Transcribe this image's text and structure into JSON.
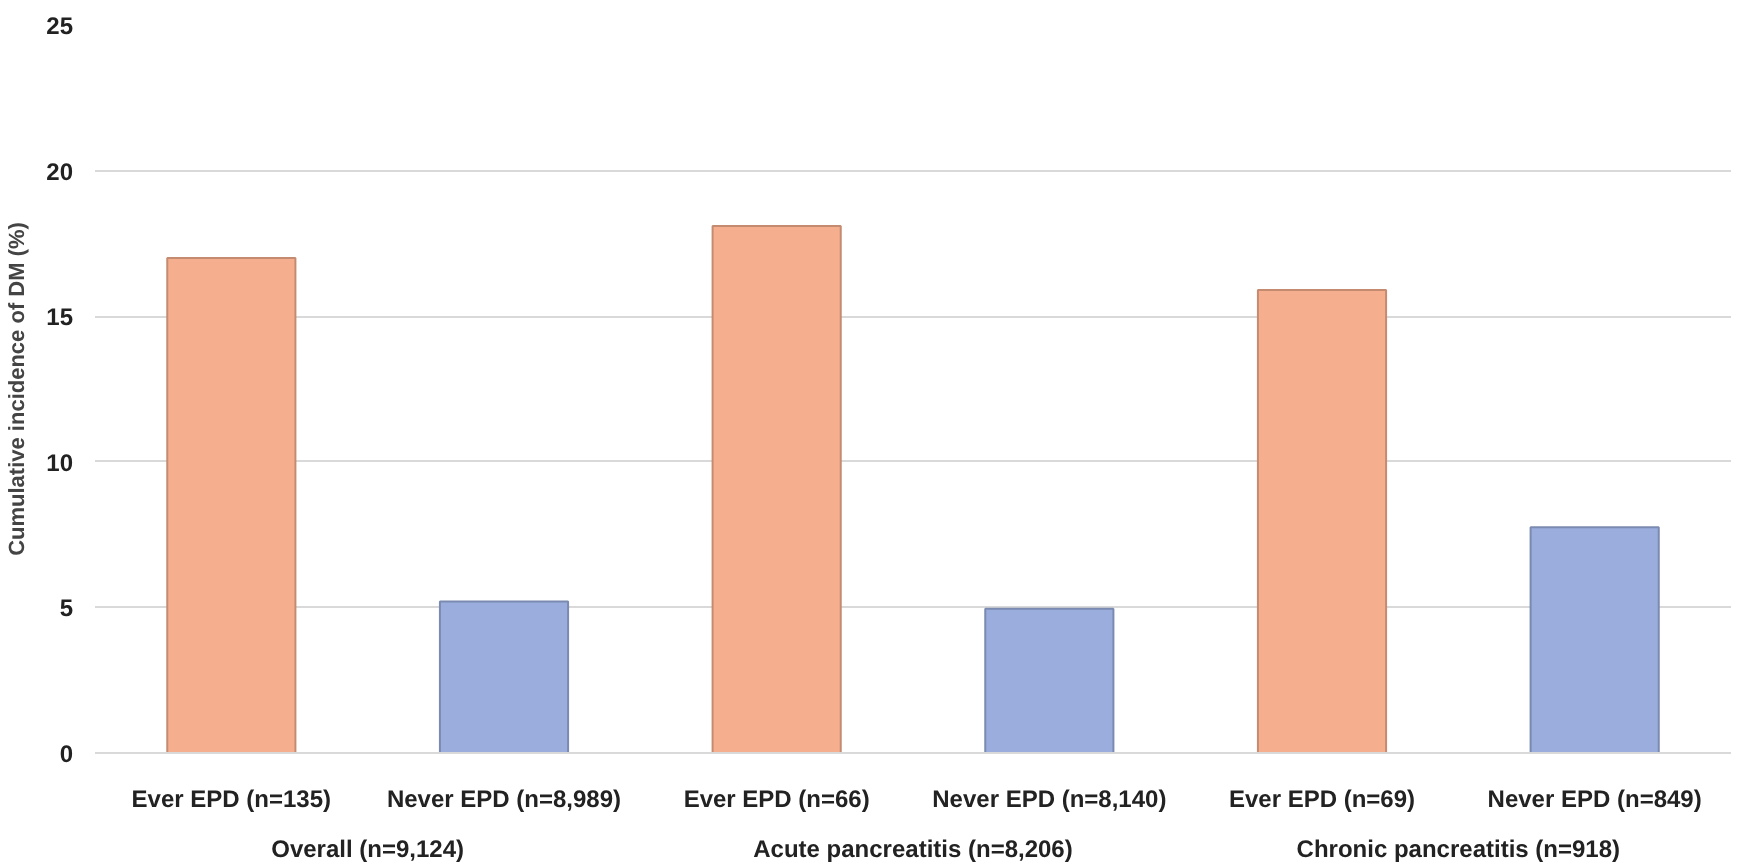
{
  "chart_data": {
    "type": "bar",
    "ylabel": "Cumulative incidence of DM (%)",
    "categories": [
      "Ever EPD (n=135)",
      "Never EPD (n=8,989)",
      "Ever EPD (n=66)",
      "Never EPD (n=8,140)",
      "Ever EPD (n=69)",
      "Never EPD (n=849)"
    ],
    "values": [
      17.0,
      5.2,
      18.1,
      4.95,
      15.9,
      7.75
    ],
    "colors": [
      "#f5ae8e",
      "#9aaddd",
      "#f5ae8e",
      "#9aaddd",
      "#f5ae8e",
      "#9aaddd"
    ],
    "ylim": [
      0,
      25
    ],
    "yticks": [
      0,
      5,
      10,
      15,
      20,
      25
    ],
    "grid": "y",
    "annotations": [
      "Overall (n=9,124)",
      "Acute pancreatitis (n=8,206)",
      "Chronic pancreatitis (n=918)"
    ]
  }
}
